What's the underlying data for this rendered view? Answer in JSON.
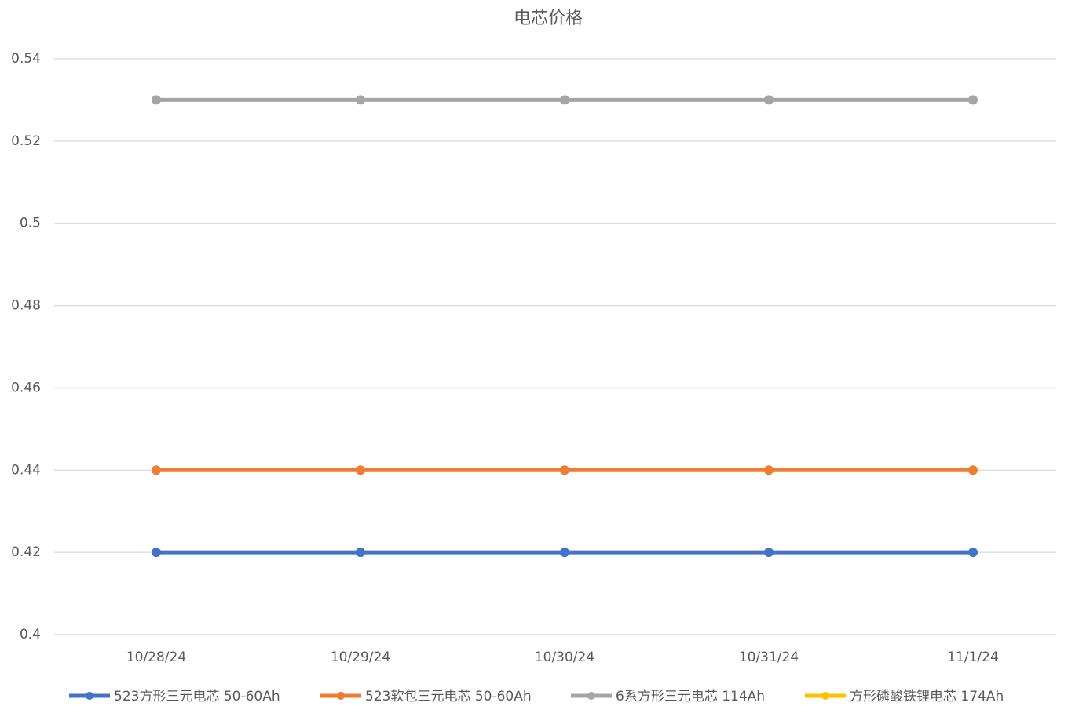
{
  "chart_data": {
    "type": "line",
    "title": "电芯价格",
    "categories": [
      "10/28/24",
      "10/29/24",
      "10/30/24",
      "10/31/24",
      "11/1/24"
    ],
    "series": [
      {
        "name": "523方形三元电芯 50-60Ah",
        "color": "#4472c4",
        "values": [
          0.42,
          0.42,
          0.42,
          0.42,
          0.42
        ]
      },
      {
        "name": "523软包三元电芯 50-60Ah",
        "color": "#ed7d31",
        "values": [
          0.44,
          0.44,
          0.44,
          0.44,
          0.44
        ]
      },
      {
        "name": "6系方形三元电芯 114Ah",
        "color": "#a5a5a5",
        "values": [
          0.53,
          0.53,
          0.53,
          0.53,
          0.53
        ]
      },
      {
        "name": "方形磷酸铁锂电芯 174Ah",
        "color": "#ffc000",
        "values": [
          null,
          null,
          null,
          null,
          null
        ]
      }
    ],
    "ylim": [
      0.4,
      0.54
    ],
    "yticks": [
      0.4,
      0.42,
      0.44,
      0.46,
      0.48,
      0.5,
      0.52,
      0.54
    ],
    "grid": true,
    "legend": "bottom"
  }
}
